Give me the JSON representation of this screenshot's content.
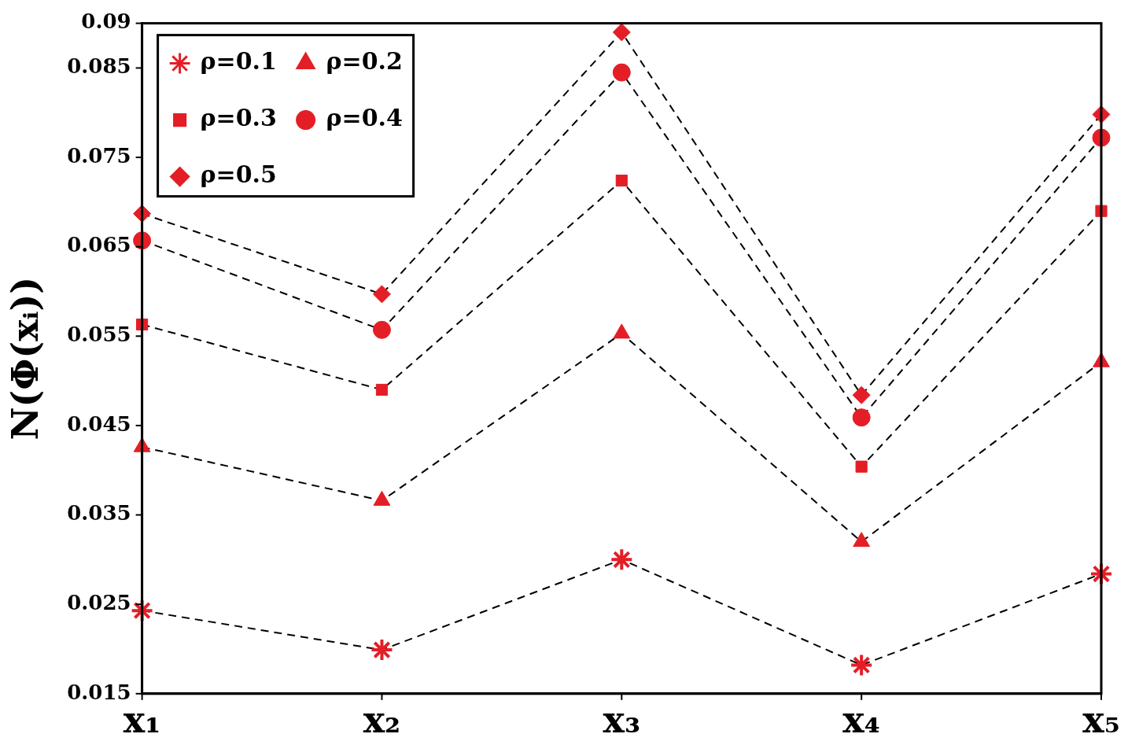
{
  "chart_data": {
    "type": "line",
    "y_label": "N(Φ(xᵢ))",
    "categories": [
      "x₁",
      "x₂",
      "x₃",
      "x₄",
      "x₅"
    ],
    "series": [
      {
        "name": "ρ=0.1",
        "color": "#e41e26",
        "marker": "star",
        "line_style": "dashed",
        "values": [
          0.0243,
          0.0199,
          0.03,
          0.0182,
          0.0284
        ]
      },
      {
        "name": "ρ=0.2",
        "color": "#e41e26",
        "marker": "triangle",
        "line_style": "dashed",
        "values": [
          0.0426,
          0.0366,
          0.0553,
          0.032,
          0.0521
        ]
      },
      {
        "name": "ρ=0.3",
        "color": "#e41e26",
        "marker": "square",
        "line_style": "dashed",
        "values": [
          0.0563,
          0.049,
          0.0724,
          0.0404,
          0.069
        ]
      },
      {
        "name": "ρ=0.4",
        "color": "#e41e26",
        "marker": "circle",
        "line_style": "dashed",
        "values": [
          0.0657,
          0.0557,
          0.0845,
          0.0459,
          0.0772
        ]
      },
      {
        "name": "ρ=0.5",
        "color": "#e41e26",
        "marker": "diamond",
        "line_style": "dashed",
        "values": [
          0.0687,
          0.0597,
          0.089,
          0.0484,
          0.0798
        ]
      }
    ],
    "ylim": [
      0.015,
      0.09
    ],
    "yticks": [
      0.015,
      0.025,
      0.035,
      0.045,
      0.055,
      0.065,
      0.075,
      0.085,
      0.09
    ],
    "grid": false,
    "legend": "upper left"
  }
}
